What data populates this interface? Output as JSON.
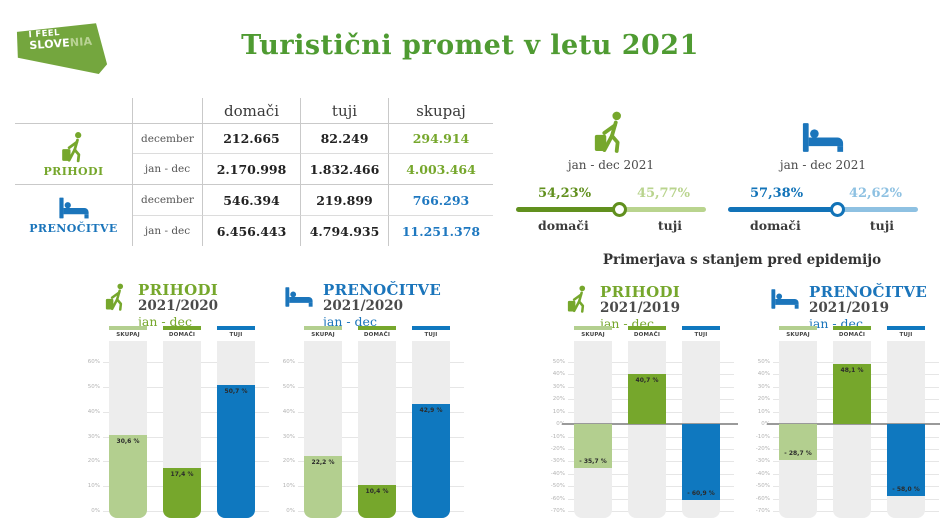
{
  "logo": {
    "line1": "I FEEL",
    "line2_strong": "SLOVE",
    "line2_light": "NIA"
  },
  "title": "Turistični promet v letu 2021",
  "colors": {
    "title_green": "#4f9b32",
    "green": "#76a72c",
    "light_green": "#b3cf8f",
    "blue": "#0f78bf",
    "table_blue": "#1b75bb"
  },
  "table": {
    "col_headers": [
      "domači",
      "tuji",
      "skupaj"
    ],
    "sections": [
      {
        "label": "PRIHODI",
        "icon": "traveler-icon",
        "rows": [
          {
            "period": "december",
            "domaci": "212.665",
            "tuji": "82.249",
            "skupaj": "294.914"
          },
          {
            "period": "jan - dec",
            "domaci": "2.170.998",
            "tuji": "1.832.466",
            "skupaj": "4.003.464"
          }
        ]
      },
      {
        "label": "PRENOČITVE",
        "icon": "bed-icon",
        "rows": [
          {
            "period": "december",
            "domaci": "546.394",
            "tuji": "219.899",
            "skupaj": "766.293"
          },
          {
            "period": "jan - dec",
            "domaci": "6.456.443",
            "tuji": "4.794.935",
            "skupaj": "11.251.378"
          }
        ]
      }
    ]
  },
  "share_sliders": [
    {
      "icon": "traveler-icon",
      "period": "jan - dec 2021",
      "left_pct_label": "54,23%",
      "right_pct_label": "45,77%",
      "left_value": 54.23,
      "left_label": "domači",
      "right_label": "tuji",
      "dark_color": "#61901e",
      "light_color": "#b9d48e"
    },
    {
      "icon": "bed-icon",
      "period": "jan - dec 2021",
      "left_pct_label": "57,38%",
      "right_pct_label": "42,62%",
      "left_value": 57.38,
      "left_label": "domači",
      "right_label": "tuji",
      "dark_color": "#1273b8",
      "light_color": "#8ec1e2"
    }
  ],
  "comparison_heading": "Primerjava s stanjem pred epidemijo",
  "chart_data": [
    {
      "type": "bar",
      "title": "PRIHODI",
      "subtitle": "2021/2020",
      "period": "jan - dec",
      "icon": "traveler-icon",
      "accent": "#76a72c",
      "categories": [
        "SKUPAJ",
        "DOMAČI",
        "TUJI"
      ],
      "values": [
        30.6,
        17.4,
        50.7
      ],
      "value_labels": [
        "30,6 %",
        "17,4 %",
        "50,7 %"
      ],
      "bar_colors": [
        "#b3cf8f",
        "#76a72c",
        "#0f78bf"
      ],
      "ylim": [
        0,
        60
      ],
      "ytick_step": 10,
      "yticks": [
        "60%",
        "50%",
        "40%",
        "30%",
        "20%",
        "10%",
        "0%"
      ],
      "grid": true,
      "legend": "none"
    },
    {
      "type": "bar",
      "title": "PRENOČITVE",
      "subtitle": "2021/2020",
      "period": "jan - dec",
      "icon": "bed-icon",
      "accent": "#1b75bb",
      "categories": [
        "SKUPAJ",
        "DOMAČI",
        "TUJI"
      ],
      "values": [
        22.2,
        10.4,
        42.9
      ],
      "value_labels": [
        "22,2 %",
        "10,4 %",
        "42,9 %"
      ],
      "bar_colors": [
        "#b3cf8f",
        "#76a72c",
        "#0f78bf"
      ],
      "ylim": [
        0,
        60
      ],
      "ytick_step": 10,
      "yticks": [
        "60%",
        "50%",
        "40%",
        "30%",
        "20%",
        "10%",
        "0%"
      ],
      "grid": true,
      "legend": "none"
    },
    {
      "type": "bar",
      "title": "PRIHODI",
      "subtitle": "2021/2019",
      "period": "jan - dec",
      "icon": "traveler-icon",
      "accent": "#76a72c",
      "categories": [
        "SKUPAJ",
        "DOMAČI",
        "TUJI"
      ],
      "values": [
        -35.7,
        40.7,
        -60.9
      ],
      "value_labels": [
        "- 35,7 %",
        "40,7 %",
        "- 60,9 %"
      ],
      "bar_colors": [
        "#b3cf8f",
        "#76a72c",
        "#0f78bf"
      ],
      "ylim": [
        -70,
        50
      ],
      "ytick_step": 10,
      "yticks": [
        "50%",
        "40%",
        "30%",
        "20%",
        "10%",
        "0%",
        "-10%",
        "-20%",
        "-30%",
        "-40%",
        "-50%",
        "-60%",
        "-70%"
      ],
      "grid": true,
      "legend": "none"
    },
    {
      "type": "bar",
      "title": "PRENOČITVE",
      "subtitle": "2021/2019",
      "period": "jan - dec",
      "icon": "bed-icon",
      "accent": "#1b75bb",
      "categories": [
        "SKUPAJ",
        "DOMAČI",
        "TUJI"
      ],
      "values": [
        -28.7,
        48.1,
        -58.0
      ],
      "value_labels": [
        "- 28,7 %",
        "48,1 %",
        "- 58,0 %"
      ],
      "bar_colors": [
        "#b3cf8f",
        "#76a72c",
        "#0f78bf"
      ],
      "ylim": [
        -70,
        50
      ],
      "ytick_step": 10,
      "yticks": [
        "50%",
        "40%",
        "30%",
        "20%",
        "10%",
        "0%",
        "-10%",
        "-20%",
        "-30%",
        "-40%",
        "-50%",
        "-60%",
        "-70%"
      ],
      "grid": true,
      "legend": "none"
    }
  ]
}
